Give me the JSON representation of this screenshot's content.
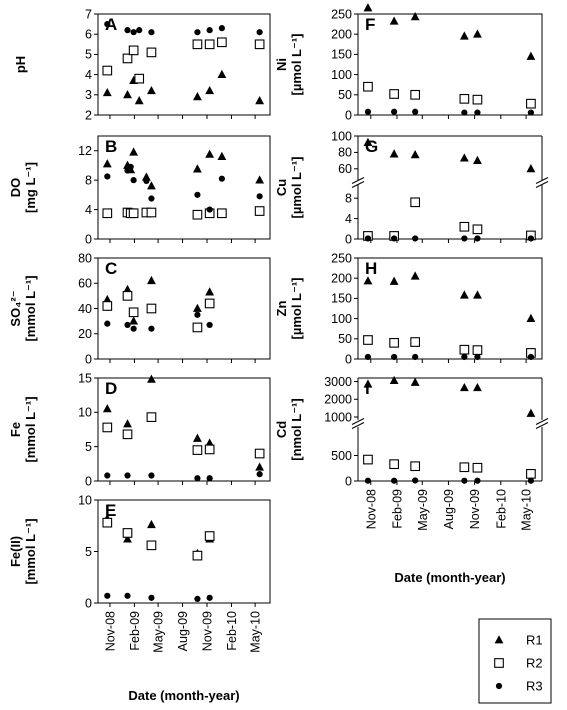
{
  "legend": [
    {
      "name": "R1",
      "marker": "triangle"
    },
    {
      "name": "R2",
      "marker": "square"
    },
    {
      "name": "R3",
      "marker": "circle"
    }
  ],
  "chart_data": [
    {
      "type": "scatter",
      "panel": "A",
      "column": "left",
      "ylabel": "pH",
      "yunit": "",
      "ylim": [
        2,
        7
      ],
      "yticks": [
        2,
        3,
        4,
        5,
        6,
        7
      ],
      "x": [
        "2008-11-05",
        "2009-01-20",
        "2009-02-12",
        "2009-03-05",
        "2009-04-20",
        "2009-05-15",
        "2009-10-10",
        "2009-11-25",
        "2010-01-10",
        "2010-06-01"
      ],
      "series": [
        {
          "name": "R1",
          "values": [
            3.1,
            3.0,
            3.7,
            2.7,
            3.2,
            null,
            2.9,
            3.2,
            4.0,
            2.7
          ]
        },
        {
          "name": "R2",
          "values": [
            4.2,
            4.8,
            5.2,
            3.8,
            5.1,
            null,
            5.5,
            5.5,
            5.6,
            5.5
          ]
        },
        {
          "name": "R3",
          "values": [
            6.5,
            6.2,
            6.1,
            6.2,
            6.1,
            null,
            6.1,
            6.2,
            6.3,
            6.1
          ]
        }
      ]
    },
    {
      "type": "scatter",
      "panel": "B",
      "column": "left",
      "ylabel": "DO",
      "yunit": "[mg L⁻¹]",
      "ylim": [
        0,
        14
      ],
      "yticks": [
        0,
        4,
        8,
        12
      ],
      "x": [
        "2008-11-05",
        "2009-01-20",
        "2009-02-01",
        "2009-02-12",
        "2009-04-01",
        "2009-04-20",
        "2009-05-15",
        "2009-10-10",
        "2009-11-25",
        "2010-01-10",
        "2010-06-01"
      ],
      "series": [
        {
          "name": "R1",
          "values": [
            10.2,
            10.0,
            9.4,
            11.8,
            8.4,
            7.2,
            null,
            9.5,
            11.5,
            11.2,
            8.0
          ]
        },
        {
          "name": "R2",
          "values": [
            3.5,
            3.6,
            3.5,
            3.5,
            3.6,
            3.6,
            null,
            3.3,
            3.5,
            3.5,
            3.8
          ]
        },
        {
          "name": "R3",
          "values": [
            8.5,
            9.3,
            9.8,
            8.0,
            7.9,
            5.5,
            null,
            6.0,
            4.0,
            8.2,
            5.8
          ]
        }
      ]
    },
    {
      "type": "scatter",
      "panel": "C",
      "column": "left",
      "ylabel": "SO₄²⁻",
      "yunit": "[mmol L⁻¹]",
      "ylim": [
        0,
        80
      ],
      "yticks": [
        0,
        20,
        40,
        60,
        80
      ],
      "x": [
        "2008-11-05",
        "2009-01-20",
        "2009-02-12",
        "2009-04-20",
        "2009-10-10",
        "2009-11-25"
      ],
      "series": [
        {
          "name": "R1",
          "values": [
            47,
            55,
            30,
            62,
            40,
            53
          ]
        },
        {
          "name": "R2",
          "values": [
            42,
            50,
            37,
            40,
            25,
            44
          ]
        },
        {
          "name": "R3",
          "values": [
            28,
            27,
            24,
            24,
            35,
            27
          ]
        }
      ]
    },
    {
      "type": "scatter",
      "panel": "D",
      "column": "left",
      "ylabel": "Fe",
      "yunit": "[mmol L⁻¹]",
      "ylim": [
        0,
        15
      ],
      "yticks": [
        0,
        5,
        10,
        15
      ],
      "x": [
        "2008-11-05",
        "2009-01-20",
        "2009-04-20",
        "2009-10-10",
        "2009-11-25",
        "2010-06-01"
      ],
      "series": [
        {
          "name": "R1",
          "values": [
            10.5,
            8.3,
            14.8,
            6.2,
            5.5,
            2.0
          ]
        },
        {
          "name": "R2",
          "values": [
            7.8,
            6.8,
            9.3,
            4.5,
            4.6,
            4.0
          ]
        },
        {
          "name": "R3",
          "values": [
            0.8,
            0.8,
            0.8,
            0.4,
            0.4,
            1.0
          ]
        }
      ]
    },
    {
      "type": "scatter",
      "panel": "E",
      "column": "left",
      "ylabel": "Fe(II)",
      "yunit": "[mmol L⁻¹]",
      "ylim": [
        0,
        10
      ],
      "yticks": [
        0,
        5,
        10
      ],
      "x": [
        "2008-11-05",
        "2009-01-20",
        "2009-04-20",
        "2009-10-10",
        "2009-11-25"
      ],
      "series": [
        {
          "name": "R1",
          "values": [
            8.2,
            6.2,
            7.6,
            4.8,
            6.2
          ]
        },
        {
          "name": "R2",
          "values": [
            7.8,
            6.8,
            5.6,
            4.6,
            6.5
          ]
        },
        {
          "name": "R3",
          "values": [
            0.7,
            0.7,
            0.5,
            0.4,
            0.5
          ]
        }
      ],
      "xticks": [
        "Nov-08",
        "Feb-09",
        "May-09",
        "Aug-09",
        "Nov-09",
        "Feb-10",
        "May-10"
      ],
      "xlabel": "Date (month-year)"
    },
    {
      "type": "scatter",
      "panel": "F",
      "column": "right",
      "ylabel": "Ni",
      "yunit": "[µmol L⁻¹]",
      "ylim": [
        0,
        250
      ],
      "yticks": [
        0,
        50,
        100,
        150,
        200,
        250
      ],
      "x": [
        "2008-11-05",
        "2009-02-05",
        "2009-04-20",
        "2009-10-10",
        "2009-11-25",
        "2010-06-01"
      ],
      "series": [
        {
          "name": "R1",
          "values": [
            265,
            232,
            243,
            195,
            200,
            145
          ]
        },
        {
          "name": "R2",
          "values": [
            70,
            52,
            50,
            40,
            38,
            28
          ]
        },
        {
          "name": "R3",
          "values": [
            8,
            8,
            8,
            6,
            6,
            6
          ]
        }
      ]
    },
    {
      "type": "scatter",
      "panel": "G",
      "column": "right",
      "broken_axis": true,
      "ylabel": "Cu",
      "yunit": "[µmol L⁻¹]",
      "yticks": [
        0,
        4,
        8,
        60,
        80,
        100
      ],
      "x": [
        "2008-11-05",
        "2009-02-05",
        "2009-04-20",
        "2009-10-10",
        "2009-11-25",
        "2010-06-01"
      ],
      "series": [
        {
          "name": "R1",
          "values": [
            92,
            78,
            77,
            73,
            70,
            60
          ]
        },
        {
          "name": "R2",
          "values": [
            0.6,
            0.6,
            7.2,
            2.4,
            1.9,
            0.7
          ]
        },
        {
          "name": "R3",
          "values": [
            0.1,
            0.1,
            0.1,
            0.1,
            0.1,
            0.1
          ]
        }
      ]
    },
    {
      "type": "scatter",
      "panel": "H",
      "column": "right",
      "ylabel": "Zn",
      "yunit": "[µmol L⁻¹]",
      "ylim": [
        0,
        250
      ],
      "yticks": [
        0,
        50,
        100,
        150,
        200,
        250
      ],
      "x": [
        "2008-11-05",
        "2009-02-05",
        "2009-04-20",
        "2009-10-10",
        "2009-11-25",
        "2010-06-01"
      ],
      "series": [
        {
          "name": "R1",
          "values": [
            193,
            192,
            205,
            158,
            158,
            100
          ]
        },
        {
          "name": "R2",
          "values": [
            47,
            40,
            42,
            23,
            22,
            15
          ]
        },
        {
          "name": "R3",
          "values": [
            5,
            5,
            5,
            5,
            5,
            5
          ]
        }
      ]
    },
    {
      "type": "scatter",
      "panel": "I",
      "column": "right",
      "broken_axis": true,
      "ylabel": "Cd",
      "yunit": "[nmol L⁻¹]",
      "yticks": [
        0,
        500,
        1000,
        2000,
        3000
      ],
      "x": [
        "2008-11-05",
        "2009-02-05",
        "2009-04-20",
        "2009-10-10",
        "2009-11-25",
        "2010-06-01"
      ],
      "series": [
        {
          "name": "R1",
          "values": [
            2850,
            3050,
            2950,
            2650,
            2650,
            1200
          ]
        },
        {
          "name": "R2",
          "values": [
            420,
            330,
            290,
            270,
            260,
            140
          ]
        },
        {
          "name": "R3",
          "values": [
            5,
            5,
            10,
            5,
            5,
            5
          ]
        }
      ],
      "xticks": [
        "Nov-08",
        "Feb-09",
        "May-09",
        "Aug-09",
        "Nov-09",
        "Feb-10",
        "May-10"
      ],
      "xlabel": "Date (month-year)"
    }
  ]
}
